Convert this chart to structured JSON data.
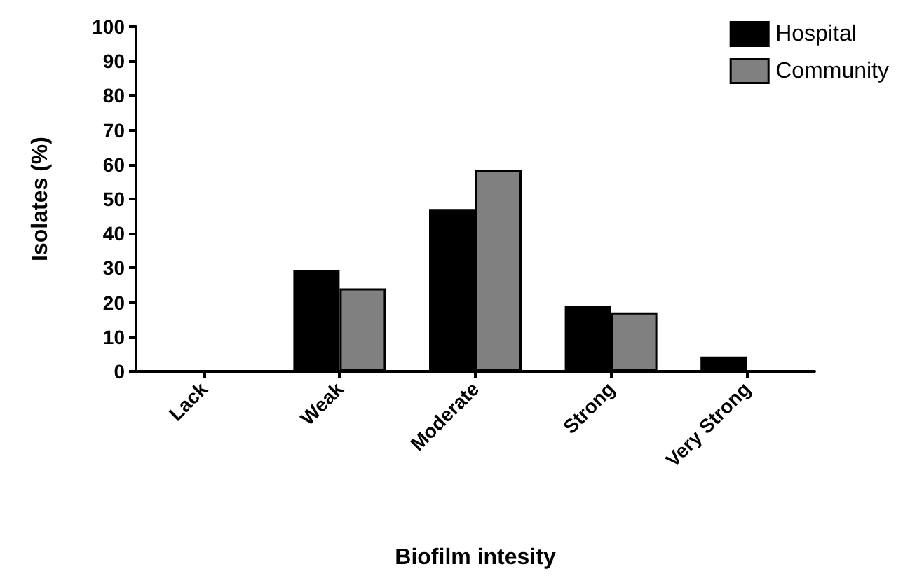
{
  "chart_data": {
    "type": "bar",
    "xlabel": "Biofilm intesity",
    "ylabel": "Isolates (%)",
    "categories": [
      "Lack",
      "Weak",
      "Moderate",
      "Strong",
      "Very Strong"
    ],
    "series": [
      {
        "name": "Hospital",
        "color": "#000000",
        "values": [
          0,
          29.4,
          47.1,
          19.1,
          4.3
        ]
      },
      {
        "name": "Community",
        "color": "#808080",
        "values": [
          0,
          24.1,
          58.5,
          17.1,
          0
        ]
      }
    ],
    "ylim": [
      0,
      100
    ],
    "yticks": [
      0,
      10,
      20,
      30,
      40,
      50,
      60,
      70,
      80,
      90,
      100
    ],
    "grid": false,
    "legend": "top right"
  }
}
